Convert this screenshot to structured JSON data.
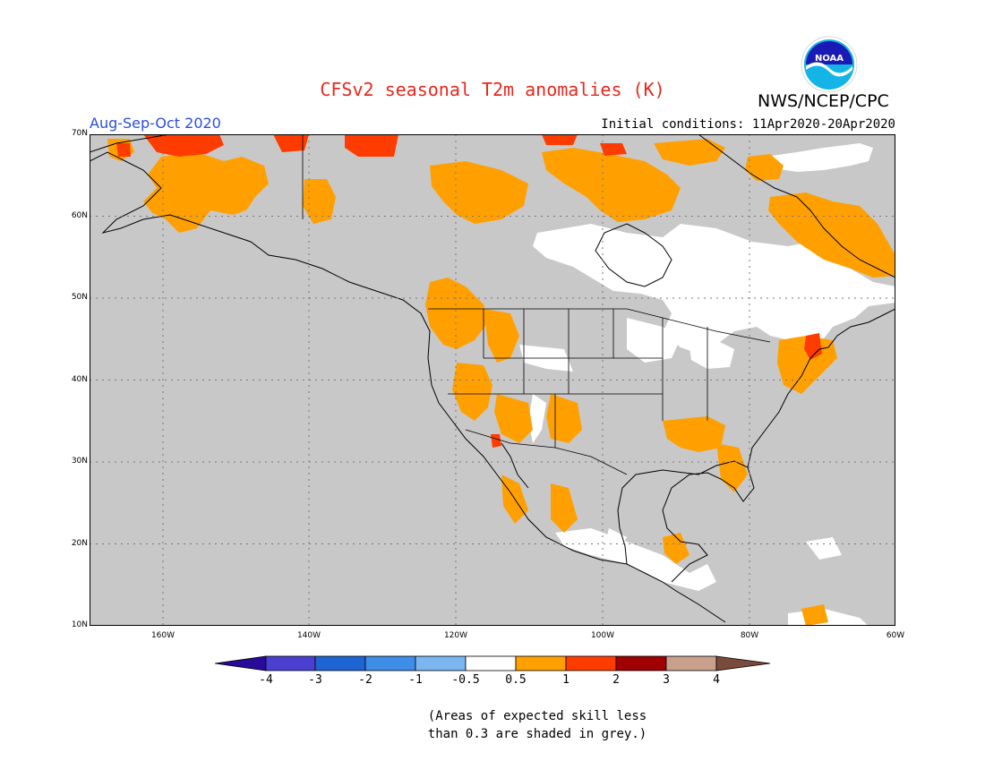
{
  "title": "CFSv2 seasonal T2m anomalies (K)",
  "agency": "NWS/NCEP/CPC",
  "logo_text": "NOAA",
  "season": "Aug-Sep-Oct 2020",
  "initial_conditions": "Initial conditions: 11Apr2020-20Apr2020",
  "note_line1": "(Areas of expected skill less",
  "note_line2": "than 0.3 are shaded in grey.)",
  "lat_labels": [
    "70N",
    "60N",
    "50N",
    "40N",
    "30N",
    "20N",
    "10N"
  ],
  "lon_labels": [
    "160W",
    "140W",
    "120W",
    "100W",
    "80W",
    "60W"
  ],
  "colorbar": {
    "labels": [
      "-4",
      "-3",
      "-2",
      "-1",
      "-0.5",
      "0.5",
      "1",
      "2",
      "3",
      "4"
    ],
    "colors": [
      "#2a0a9a",
      "#4b3fcf",
      "#1e64d2",
      "#3c8ee6",
      "#7cb6f0",
      "#ffffff",
      "#ffa000",
      "#ff3c00",
      "#a00000",
      "#c8a08c",
      "#7a4a3a"
    ]
  },
  "colors": {
    "grey_low_skill": "#c8c8c8",
    "neutral": "#ffffff",
    "anom_0_5_to_1": "#ffa000",
    "anom_1_to_2": "#ff3c00",
    "title_red": "#e8281e",
    "season_blue": "#2a4fe0"
  }
}
